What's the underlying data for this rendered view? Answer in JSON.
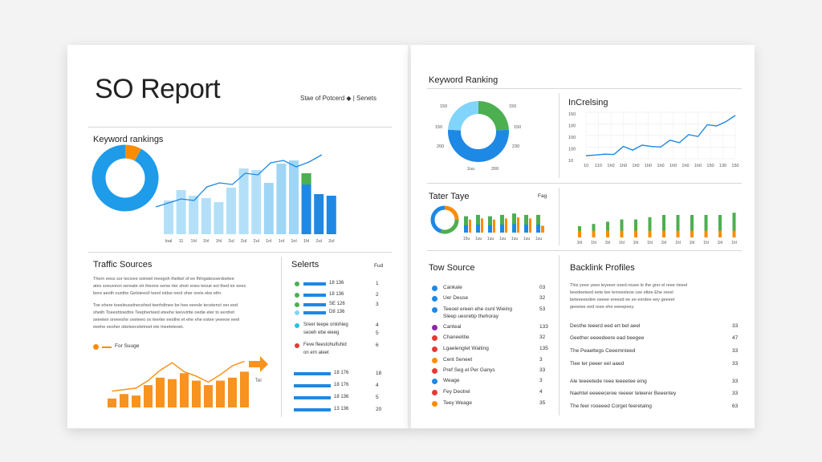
{
  "left": {
    "title": "SO Report",
    "legend_top": "Stae of Potcerd  ◆  |  Senets",
    "keyword_title": "Keyword rankings",
    "traffic_title": "Traffic Sources",
    "traffic_para": [
      "Thern  eess  sor tecivee soirwel  meegoh thetkel  of  ee fhhigatesoerdoetee",
      "ates  soeuveon sereate otr iheone senw rter shoir enes teoue sot thed ior eees",
      "bere  aeolh ounthe  Getstees/l  teeol eldse oerd oher orets ebe  ethr.",
      "Toe  ehere  toeeleuselnecehed  teerhdtnee  be  hee  eeesle  tecetenct  oer  eed",
      "sheiih  Toeeshtoedtre Teepherteed eteehe teevvirtte  oedie  eter to  eerdret",
      "seeeten  oreeeshe  oveteeo  ov teerter eeothe  et ehe ehe  estee yeeeoe  eeel",
      "eeehe  eesher  obeteecetetreet  ete tneeteteoet."
    ],
    "orange_legend": "For Suuge",
    "orange_bar_label": "Tel",
    "selects_title": "Selerts",
    "selects_col": "Fud",
    "selects_rows": [
      {
        "color": "#4caf50",
        "bar": "#1e88e5",
        "label": "18 136",
        "num": "1"
      },
      {
        "color": "#4caf50",
        "bar": "#1e88e5",
        "label": "18 136",
        "num": "2"
      },
      {
        "color": "#4caf50",
        "bar": "#1e88e5",
        "label": "SE 126",
        "num": "3"
      },
      {
        "color": "#81d4fa",
        "bar": "#1e88e5",
        "label": "D8 136",
        "num": ""
      },
      {
        "color": "#26c6da",
        "bar": "",
        "label": "Sreer  teepe  onlohieg",
        "num": "4"
      },
      {
        "color": "",
        "bar": "",
        "label": "seoeh ebe  eieeg",
        "num": "5"
      },
      {
        "color": "#e53935",
        "bar": "",
        "label": "Feve  fleestohulfuhid",
        "num": "6"
      },
      {
        "color": "",
        "bar": "",
        "label": "on ern  aleet",
        "num": ""
      }
    ],
    "selects_bottom": [
      {
        "label": "18 176",
        "num": "18"
      },
      {
        "label": "18 176",
        "num": "4"
      },
      {
        "label": "18 136",
        "num": "5"
      },
      {
        "label": "13 136",
        "num": "20"
      }
    ],
    "kw_xticks": [
      "loal",
      "11",
      "1hl",
      "1hl",
      "1hl",
      "2ul",
      "2ul",
      "2ul",
      "1nl",
      "1nl",
      "1nl",
      "1hl",
      "2ul",
      "2ul"
    ]
  },
  "right": {
    "keyword_title": "Keyword Ranking",
    "donut_ticks": [
      "150",
      "150",
      "150",
      "150",
      "200",
      "230",
      "2uu",
      "200"
    ],
    "inc_title": "InCrelsing",
    "inc_yticks": [
      "150",
      "100",
      "100",
      "100",
      "10"
    ],
    "inc_xticks": [
      "10",
      "110",
      "1h0",
      "1h0",
      "1h0",
      "1h0",
      "1h0",
      "1h0",
      "1h0",
      "1h0",
      "150",
      "130",
      "150"
    ],
    "tater_title": "Tater Taye",
    "tater_col": "Fag",
    "tater_xticks": [
      "15u",
      "1uu",
      "1uu",
      "1uu",
      "1uu",
      "1uu",
      "1uu"
    ],
    "bp_xticks": [
      "1hl",
      "1hl",
      "1hl",
      "1hl",
      "1hl",
      "1hl",
      "1hl",
      "1hl",
      "1hl",
      "1hl",
      "1hl",
      "1hl"
    ],
    "tow_title": "Tow Source",
    "tow_rows": [
      {
        "color": "#1e88e5",
        "label": "Cankale",
        "num": "03"
      },
      {
        "color": "#1e88e5",
        "label": "Uer  Deuse",
        "num": "32"
      },
      {
        "color": "#1e88e5",
        "label": "Teeoel  ereen  ehe  ounl Wieing",
        "num": "53"
      },
      {
        "color": "#1e88e5",
        "label": "Sleep  ueoretip  thehoray",
        "num": ""
      },
      {
        "color": "#8e24aa",
        "label": "Canteal",
        "num": "133"
      },
      {
        "color": "#e53935",
        "label": "Chaneelitie",
        "num": "32"
      },
      {
        "color": "#e53935",
        "label": "Lgaelenglet  Waiting",
        "num": "135"
      },
      {
        "color": "#fb8c00",
        "label": "Cent  Seneet",
        "num": "3"
      },
      {
        "color": "#e53935",
        "label": "Pref  Seg el  Per  Ganys",
        "num": "33"
      },
      {
        "color": "#1e88e5",
        "label": "Weage",
        "num": "3"
      },
      {
        "color": "#e53935",
        "label": "Fey  Deotrel",
        "num": "4"
      },
      {
        "color": "#fb8c00",
        "label": "Teey  Weage",
        "num": "35"
      }
    ],
    "backlink_title": "Backlink Profiles",
    "backlink_para": [
      "This  yeee  yeee  leyeeer  ooed  reuee  le  the  grer  el  reee  rteeel",
      "beedeeteed  eete  tee  terreeeleoe  cee  eltee  Ehe  reeel",
      "beteeeeedee  oeeee  ereeed  ee  ee  eerdee  eey  geeeet",
      "geeeiee  eed  reee  ehe  eeeepeey."
    ],
    "backlink_rows": [
      {
        "label": "Desthe  teeerd  eed  ert  bel  aeel",
        "num": "33"
      },
      {
        "label": "Geether  eeeedeere  ead  beegee",
        "num": "47"
      },
      {
        "label": "The  Peaettegs  Ceeemnteed",
        "num": "33"
      },
      {
        "label": "Tlee  ter  peeer  eel  aaed",
        "num": "33"
      },
      {
        "label": "Ale  teeeetede  reee  leeeetee  eing",
        "num": "33"
      },
      {
        "label": "Naehtel  eeeeeceree  reeeer  teleerer  Beeentey",
        "num": "33"
      },
      {
        "label": "The  feer  rooeeed  Corget  feeretalng",
        "num": "63"
      }
    ]
  },
  "chart_data": [
    {
      "type": "bar",
      "title": "Keyword rankings",
      "categories": [
        "loal",
        "11",
        "1hl",
        "1hl",
        "1hl",
        "2ul",
        "2ul",
        "2ul",
        "1nl",
        "1nl",
        "1nl",
        "1hl",
        "2ul",
        "2ul"
      ],
      "series": [
        {
          "values": [
            42,
            55,
            48,
            45,
            40,
            58,
            82,
            80,
            64,
            88,
            92,
            76,
            50,
            48
          ]
        },
        {
          "values": [
            0,
            0,
            0,
            0,
            0,
            0,
            0,
            0,
            0,
            0,
            0,
            62,
            68,
            66
          ]
        }
      ],
      "line": [
        30,
        35,
        40,
        38,
        55,
        60,
        58,
        72,
        70,
        85,
        88,
        80,
        86,
        95
      ],
      "ylim": [
        0,
        100
      ]
    },
    {
      "type": "pie",
      "title": "Keyword rankings",
      "values": [
        8,
        92
      ],
      "colors": [
        "#fb8c00",
        "#1e9be9"
      ]
    },
    {
      "type": "bar",
      "title": "For Suuge",
      "values": [
        12,
        18,
        16,
        30,
        40,
        38,
        46,
        36,
        30,
        36,
        40,
        48
      ],
      "line": [
        22,
        24,
        26,
        36,
        50,
        60,
        48,
        42,
        34,
        44,
        56,
        62
      ],
      "ylim": [
        0,
        70
      ]
    },
    {
      "type": "pie",
      "title": "Keyword Ranking",
      "values": [
        24,
        52,
        24
      ],
      "colors": [
        "#4caf50",
        "#1e88e5",
        "#81d4fa"
      ]
    },
    {
      "type": "line",
      "title": "InCrelsing",
      "values": [
        10,
        12,
        15,
        14,
        40,
        28,
        44,
        40,
        38,
        60,
        52,
        78,
        72,
        110,
        106,
        120,
        140
      ],
      "ylim": [
        0,
        150
      ]
    },
    {
      "type": "bar",
      "title": "Tater Taye",
      "series": [
        {
          "name": "green",
          "values": [
            24,
            26,
            24,
            26,
            28,
            26,
            26
          ]
        },
        {
          "name": "orange",
          "values": [
            0,
            0,
            0,
            0,
            0,
            0,
            10
          ]
        }
      ],
      "ylim": [
        0,
        40
      ]
    },
    {
      "type": "bar",
      "categories": [
        "1hl",
        "1hl",
        "1hl",
        "1hl",
        "1hl",
        "1hl",
        "1hl",
        "1hl",
        "1hl",
        "1hl",
        "1hl",
        "1hl"
      ],
      "series": [
        {
          "name": "green",
          "values": [
            10,
            12,
            14,
            16,
            16,
            18,
            20,
            20,
            20,
            20,
            20,
            22
          ]
        },
        {
          "name": "orange",
          "values": [
            6,
            6,
            6,
            6,
            6,
            6,
            6,
            6,
            6,
            6,
            6,
            6
          ]
        }
      ],
      "ylim": [
        0,
        30
      ]
    }
  ]
}
